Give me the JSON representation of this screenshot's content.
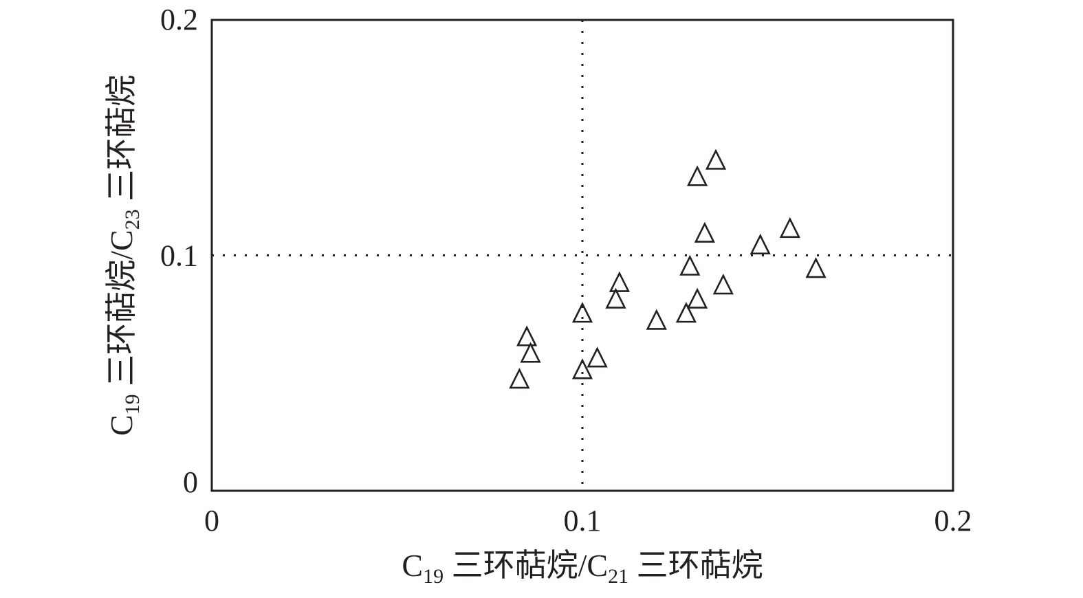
{
  "chart_data": {
    "type": "scatter",
    "title": "",
    "xlabel": {
      "prefix": "C",
      "sub1": "19",
      "mid": " 三环萜烷/C",
      "sub2": "21",
      "suffix": " 三环萜烷"
    },
    "ylabel": {
      "prefix": "C",
      "sub1": "19",
      "mid": " 三环萜烷/C",
      "sub2": "23",
      "suffix": " 三环萜烷"
    },
    "xlim": [
      0,
      0.2
    ],
    "ylim": [
      0,
      0.2
    ],
    "x_ticks": [
      {
        "value": 0,
        "label": "0"
      },
      {
        "value": 0.1,
        "label": "0.1"
      },
      {
        "value": 0.2,
        "label": "0.2"
      }
    ],
    "y_ticks": [
      {
        "value": 0,
        "label": "0"
      },
      {
        "value": 0.1,
        "label": "0.1"
      },
      {
        "value": 0.2,
        "label": "0.2"
      }
    ],
    "reference_lines": {
      "x": 0.1,
      "y": 0.1,
      "style": "dotted"
    },
    "grid": false,
    "marker": "open-triangle",
    "colors": {
      "marker_stroke": "#231f20",
      "axis": "#231f20",
      "text": "#231f20"
    },
    "points": [
      {
        "x": 0.083,
        "y": 0.047
      },
      {
        "x": 0.085,
        "y": 0.065
      },
      {
        "x": 0.086,
        "y": 0.058
      },
      {
        "x": 0.1,
        "y": 0.075
      },
      {
        "x": 0.1,
        "y": 0.051
      },
      {
        "x": 0.104,
        "y": 0.056
      },
      {
        "x": 0.109,
        "y": 0.081
      },
      {
        "x": 0.11,
        "y": 0.088
      },
      {
        "x": 0.12,
        "y": 0.072
      },
      {
        "x": 0.128,
        "y": 0.075
      },
      {
        "x": 0.129,
        "y": 0.095
      },
      {
        "x": 0.131,
        "y": 0.081
      },
      {
        "x": 0.131,
        "y": 0.133
      },
      {
        "x": 0.133,
        "y": 0.109
      },
      {
        "x": 0.136,
        "y": 0.14
      },
      {
        "x": 0.138,
        "y": 0.087
      },
      {
        "x": 0.148,
        "y": 0.104
      },
      {
        "x": 0.156,
        "y": 0.111
      },
      {
        "x": 0.163,
        "y": 0.094
      }
    ]
  }
}
